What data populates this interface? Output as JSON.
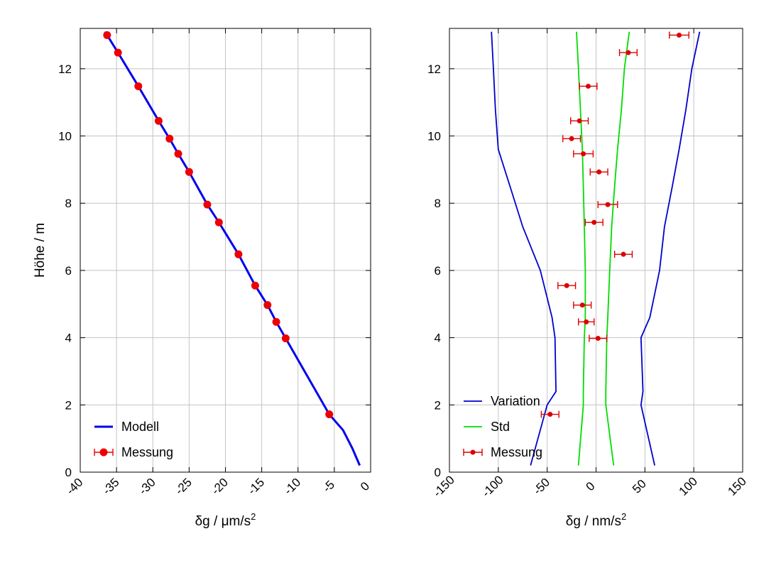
{
  "chart_data": [
    {
      "type": "line",
      "xlabel_base": "δg / μm/s",
      "xlabel_sup": "2",
      "ylabel": "Höhe / m",
      "xlim": [
        -40,
        0
      ],
      "ylim": [
        0,
        13.2
      ],
      "xticks": [
        -40,
        -35,
        -30,
        -25,
        -20,
        -15,
        -10,
        -5,
        0
      ],
      "xtick_labels": [
        "-40",
        "-35",
        "-30",
        "-25",
        "-20",
        "-15",
        "-10",
        "-5",
        "0"
      ],
      "yticks": [
        0,
        2,
        4,
        6,
        8,
        10,
        12
      ],
      "ytick_labels": [
        "0",
        "2",
        "4",
        "6",
        "8",
        "10",
        "12"
      ],
      "grid": true,
      "legend_position": "bottom-left",
      "series": [
        {
          "name": "Modell",
          "kind": "line",
          "color": "#0000ee",
          "x": [
            -1.5,
            -2.5,
            -3.8,
            -5.7,
            -11.7,
            -13.0,
            -14.2,
            -15.9,
            -18.2,
            -20.9,
            -22.5,
            -25.0,
            -26.5,
            -27.7,
            -29.2,
            -32.0,
            -34.8,
            -36.3,
            -36.6
          ],
          "y": [
            0.2,
            0.7,
            1.25,
            1.72,
            3.98,
            4.47,
            4.97,
            5.55,
            6.48,
            7.43,
            7.96,
            8.93,
            9.47,
            9.92,
            10.45,
            11.48,
            12.48,
            13.0,
            13.1
          ]
        },
        {
          "name": "Messung",
          "kind": "points",
          "color": "#ee0000",
          "x": [
            -5.7,
            -11.7,
            -13.0,
            -14.2,
            -15.9,
            -18.2,
            -20.9,
            -22.5,
            -25.0,
            -26.5,
            -27.7,
            -29.2,
            -32.0,
            -34.8,
            -36.3
          ],
          "y": [
            1.72,
            3.98,
            4.47,
            4.97,
            5.55,
            6.48,
            7.43,
            7.96,
            8.93,
            9.47,
            9.92,
            10.45,
            11.48,
            12.48,
            13.0
          ]
        }
      ]
    },
    {
      "type": "line",
      "xlabel_base": "δg / nm/s",
      "xlabel_sup": "2",
      "xlim": [
        -150,
        150
      ],
      "ylim": [
        0,
        13.2
      ],
      "xticks": [
        -150,
        -100,
        -50,
        0,
        50,
        100,
        150
      ],
      "xtick_labels": [
        "-150",
        "-100",
        "-50",
        "0",
        "50",
        "100",
        "150"
      ],
      "yticks": [
        0,
        2,
        4,
        6,
        8,
        10,
        12
      ],
      "ytick_labels": [
        "0",
        "2",
        "4",
        "6",
        "8",
        "10",
        "12"
      ],
      "grid": true,
      "legend_position": "bottom-left",
      "series": [
        {
          "name": "Variation",
          "kind": "band",
          "color": "#0000cc",
          "x_upper": [
            60,
            46,
            48,
            46,
            55,
            65,
            70,
            78,
            85,
            92,
            98,
            106
          ],
          "x_lower": [
            -67,
            -50,
            -41,
            -42,
            -45,
            -57,
            -75,
            -88,
            -100,
            -103,
            -105,
            -107
          ],
          "y": [
            0.2,
            2.0,
            2.4,
            4.0,
            4.6,
            6.0,
            7.3,
            8.5,
            9.6,
            10.8,
            12.0,
            13.1
          ]
        },
        {
          "name": "Std",
          "kind": "band",
          "color": "#00dd00",
          "x_upper": [
            18,
            10,
            10,
            11,
            12,
            14,
            16,
            19,
            22,
            26,
            29,
            34
          ],
          "x_lower": [
            -18,
            -13,
            -13,
            -12,
            -11,
            -11,
            -12,
            -13,
            -14,
            -16,
            -18,
            -20
          ],
          "y": [
            0.2,
            2.0,
            2.4,
            4.0,
            4.6,
            6.0,
            7.3,
            8.5,
            9.6,
            10.8,
            12.0,
            13.1
          ]
        },
        {
          "name": "Messung",
          "kind": "errorbar",
          "color": "#dd0000",
          "x": [
            -47,
            2,
            -10,
            -14,
            -30,
            28,
            -2,
            12,
            3,
            -13,
            -25,
            -17,
            -8,
            33,
            85
          ],
          "xerr": [
            9,
            9,
            8,
            9,
            9,
            9,
            9,
            10,
            9,
            10,
            9,
            9,
            9,
            9,
            10
          ],
          "y": [
            1.72,
            3.98,
            4.47,
            4.97,
            5.55,
            6.48,
            7.43,
            7.96,
            8.93,
            9.47,
            9.92,
            10.45,
            11.48,
            12.48,
            13.0
          ]
        }
      ]
    }
  ]
}
